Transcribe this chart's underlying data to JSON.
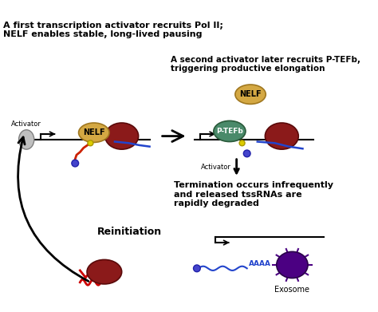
{
  "title_line1": "A first transcription activator recruits Pol II;",
  "title_line2": "NELF enables stable, long-lived pausing",
  "top_right_line1": "A second activator later recruits P-TEFb,",
  "top_right_line2": "triggering productive elongation",
  "termination_line1": "Termination occurs infrequently",
  "termination_line2": "and released tssRNAs are",
  "termination_line3": "rapidly degraded",
  "reinitiation_label": "Reinitiation",
  "exosome_label": "Exosome",
  "activator_label1": "Activator",
  "activator_label2": "Activator",
  "nelf_label1": "NELF",
  "nelf_label2": "NELF",
  "ptefb_label": "P-TEFb",
  "aaaa_label": "AAAA",
  "bg_color": "#ffffff",
  "text_color": "#000000",
  "arrow_color": "#000000",
  "dna_line_color": "#000000",
  "nelf_color1": "#d4a843",
  "nelf_color2": "#d4a843",
  "pol2_color": "#8b1a1a",
  "ptefb_color": "#4a8a6a",
  "activator_color": "#c0c0c0",
  "exosome_color": "#4b0082",
  "rna_red_color": "#cc0000",
  "small_circle_color": "#4444cc"
}
